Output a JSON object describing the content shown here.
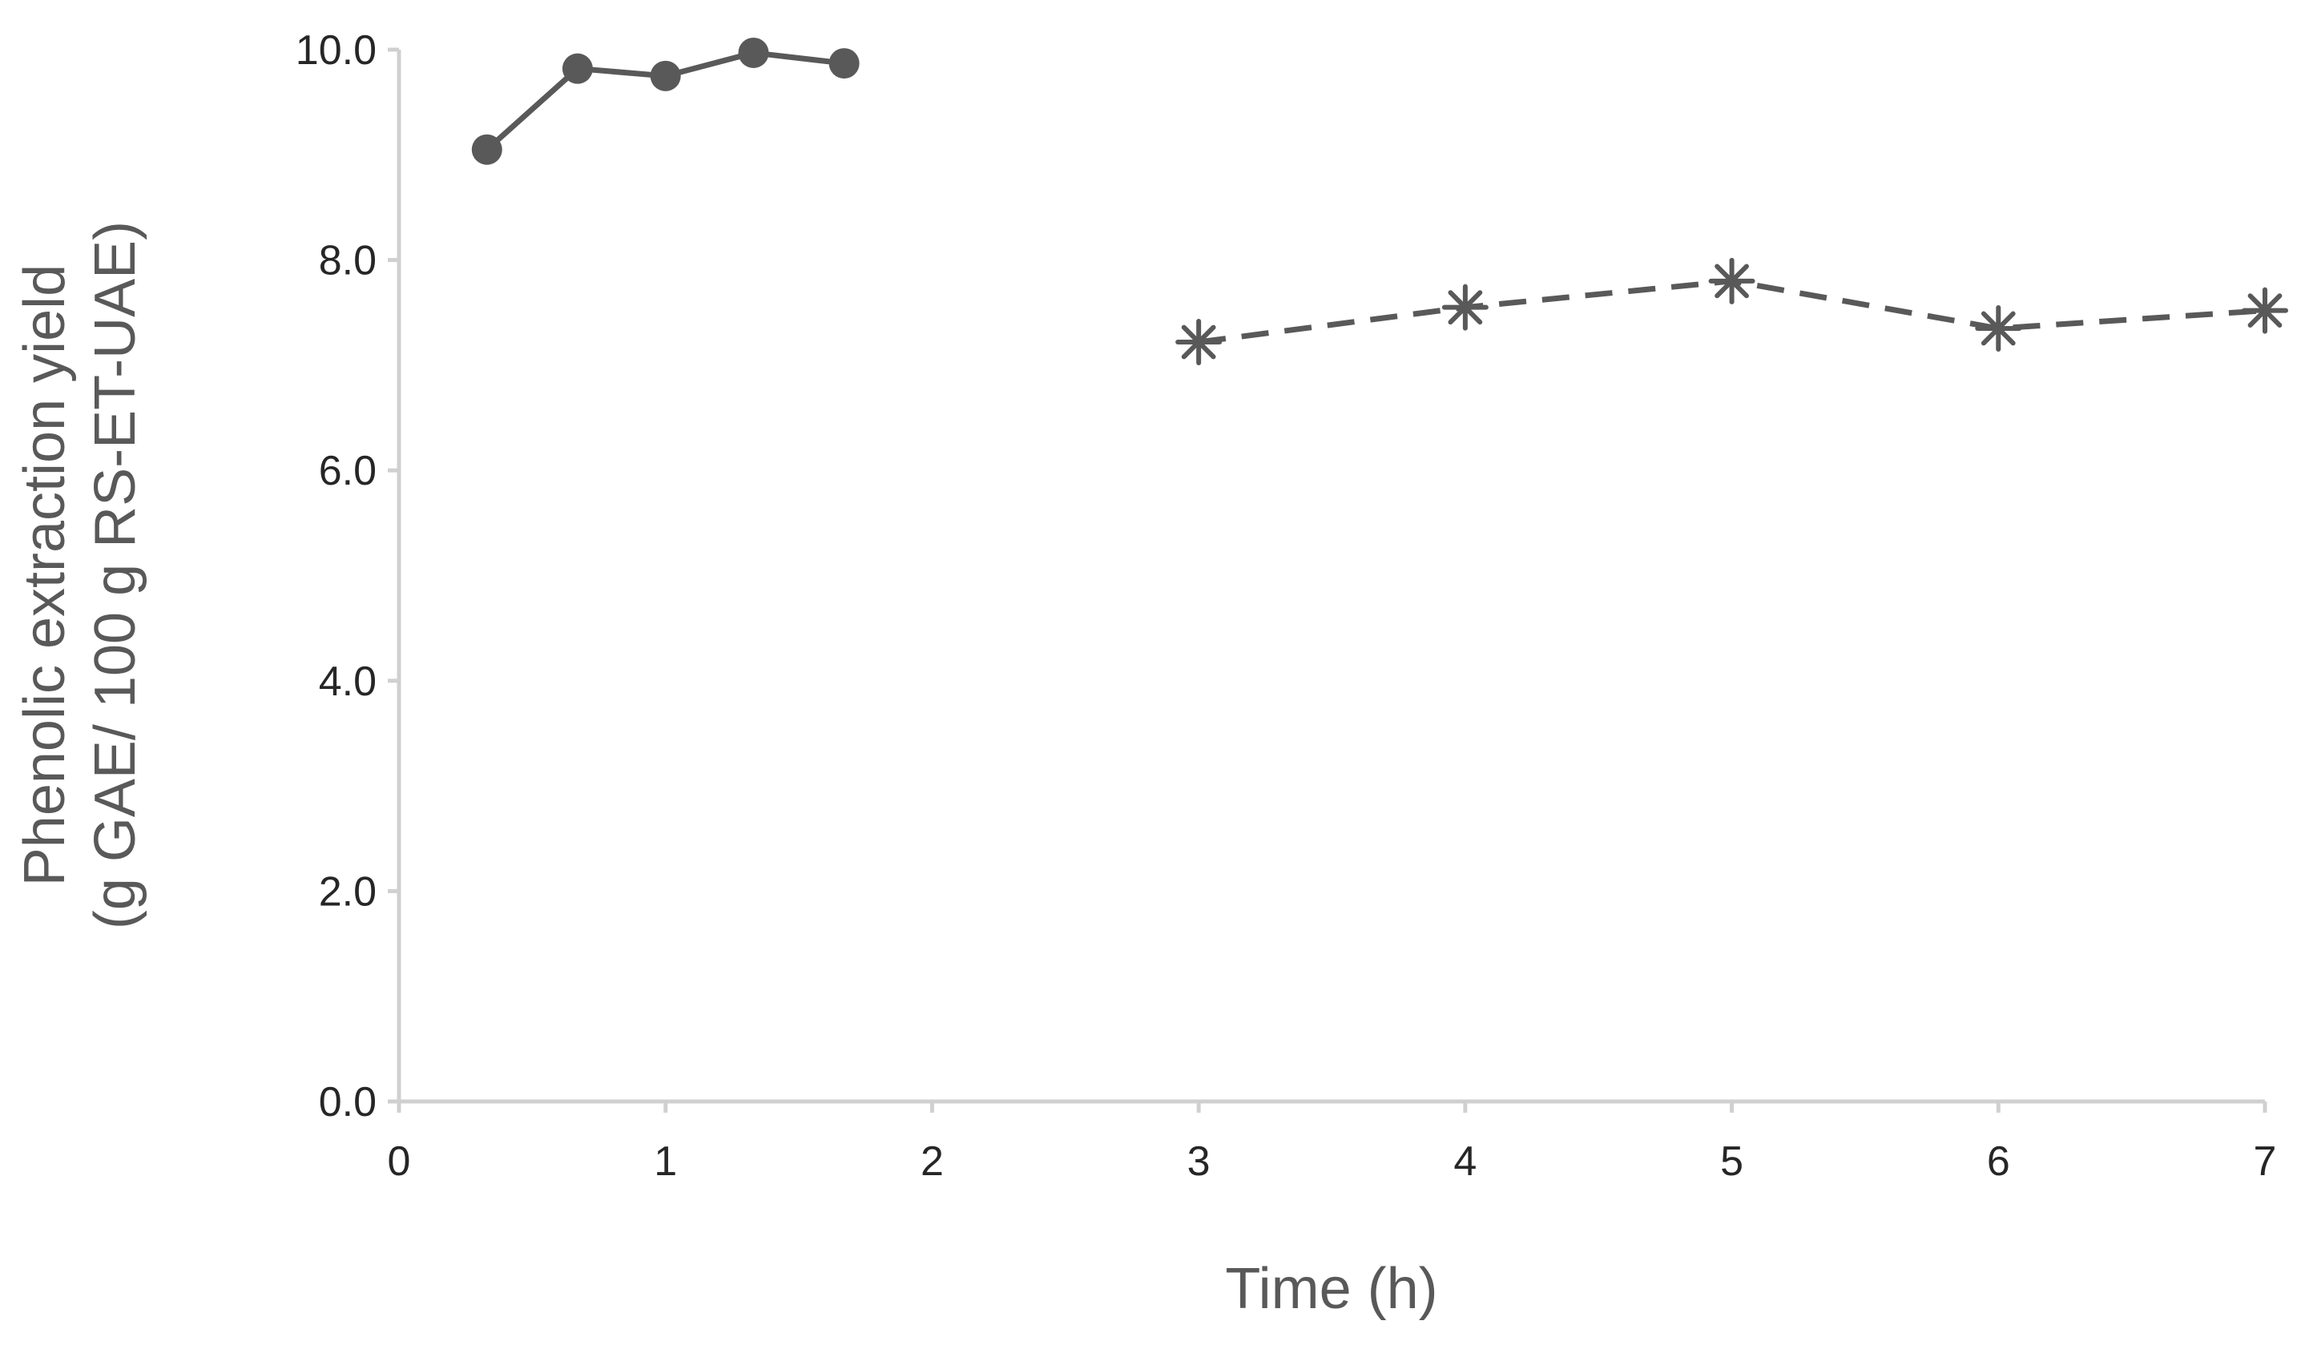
{
  "chart_data": {
    "type": "line",
    "title": "",
    "xlabel": "Time (h)",
    "ylabel_line1": "Phenolic extraction yield",
    "ylabel_line2": "(g GAE/ 100 g RS-ET-UAE)",
    "xlim": [
      0,
      7
    ],
    "ylim": [
      0,
      10
    ],
    "xticks": [
      "0",
      "1",
      "2",
      "3",
      "4",
      "5",
      "6",
      "7"
    ],
    "yticks": [
      "0.0",
      "2.0",
      "4.0",
      "6.0",
      "8.0",
      "10.0"
    ],
    "grid": false,
    "legend": "none",
    "series": [
      {
        "name": "series-1",
        "style": "solid",
        "marker": "circle",
        "color": "#595959",
        "x": [
          0.33,
          0.67,
          1.0,
          1.33,
          1.67
        ],
        "y": [
          9.05,
          9.82,
          9.75,
          9.97,
          9.87
        ]
      },
      {
        "name": "series-2",
        "style": "dashed",
        "marker": "asterisk",
        "color": "#595959",
        "x": [
          3,
          4,
          5,
          6,
          7
        ],
        "y": [
          7.22,
          7.55,
          7.8,
          7.35,
          7.52
        ]
      }
    ]
  }
}
